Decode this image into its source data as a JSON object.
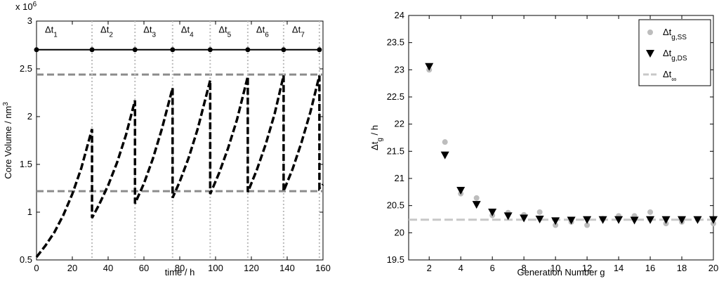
{
  "chart_data": [
    {
      "type": "line",
      "xlabel": "time / h",
      "ylabel": {
        "text": "Core Volume / nm",
        "sup": "3"
      },
      "y_multiplier": {
        "text": "x 10",
        "sup": "6"
      },
      "xlim": [
        0,
        160
      ],
      "ylim": [
        0.5,
        3
      ],
      "xticks": [
        0,
        20,
        40,
        60,
        80,
        100,
        120,
        140,
        160
      ],
      "yticks": [
        0.5,
        1,
        1.5,
        2,
        2.5,
        3
      ],
      "x": [
        0,
        5,
        10,
        15,
        20,
        25,
        31,
        31,
        35,
        40,
        45,
        50,
        55,
        55,
        60,
        65,
        70,
        76,
        76,
        80,
        85,
        90,
        97,
        97,
        102,
        107,
        112,
        118,
        118,
        123,
        128,
        133,
        138,
        138,
        143,
        148,
        153,
        158,
        158,
        160
      ],
      "series": [
        {
          "color": "#000000",
          "values": [
            0.53,
            0.65,
            0.79,
            0.97,
            1.19,
            1.46,
            1.87,
            0.94,
            1.08,
            1.28,
            1.52,
            1.81,
            2.17,
            1.09,
            1.3,
            1.56,
            1.87,
            2.3,
            1.15,
            1.32,
            1.57,
            1.87,
            2.38,
            1.19,
            1.41,
            1.67,
            1.97,
            2.42,
            1.21,
            1.44,
            1.71,
            2.03,
            2.43,
            1.22,
            1.45,
            1.73,
            2.05,
            2.43,
            1.25,
            1.29
          ]
        }
      ],
      "reference_lines": {
        "color": "#8c8c8c",
        "values": [
          2.44,
          1.22
        ]
      },
      "division_times": [
        0,
        31,
        55,
        76,
        97,
        118,
        138,
        158
      ],
      "interval_level": 2.7,
      "interval_labels": [
        {
          "text": "Δt",
          "sub": "1"
        },
        {
          "text": "Δt",
          "sub": "2"
        },
        {
          "text": "Δt",
          "sub": "3"
        },
        {
          "text": "Δt",
          "sub": "4"
        },
        {
          "text": "Δt",
          "sub": "5"
        },
        {
          "text": "Δt",
          "sub": "6"
        },
        {
          "text": "Δt",
          "sub": "7"
        }
      ]
    },
    {
      "type": "scatter",
      "xlabel": "Generation Number g",
      "ylabel": {
        "text": "Δt",
        "sub": "g",
        "rest": " / h"
      },
      "xlim": [
        0.7,
        20
      ],
      "ylim": [
        19.5,
        24
      ],
      "xticks": [
        2,
        4,
        6,
        8,
        10,
        12,
        14,
        16,
        18,
        20
      ],
      "yticks": [
        19.5,
        20,
        20.5,
        21,
        21.5,
        22,
        22.5,
        23,
        23.5,
        24
      ],
      "x": [
        2,
        3,
        4,
        5,
        6,
        7,
        8,
        9,
        10,
        11,
        12,
        13,
        14,
        15,
        16,
        17,
        18,
        19,
        20
      ],
      "series": [
        {
          "name": "Δt",
          "name_sub": "g,SS",
          "marker": "circle",
          "color": "#bdbdbd",
          "values": [
            23.0,
            21.67,
            20.72,
            20.64,
            20.32,
            20.37,
            20.33,
            20.38,
            20.14,
            20.2,
            20.14,
            20.26,
            20.31,
            20.31,
            20.38,
            20.17,
            20.2,
            20.25,
            20.17
          ]
        },
        {
          "name": "Δt",
          "name_sub": "g,DS",
          "marker": "triangle",
          "color": "#000000",
          "values": [
            23.06,
            21.43,
            20.78,
            20.52,
            20.38,
            20.31,
            20.27,
            20.25,
            20.22,
            20.23,
            20.24,
            20.24,
            20.24,
            20.23,
            20.24,
            20.24,
            20.24,
            20.24,
            20.24
          ]
        }
      ],
      "reference_line": {
        "name": "Δt",
        "name_sub": "∞",
        "value": 20.24,
        "color": "#c8c8c8"
      },
      "legend": "upper right"
    }
  ]
}
